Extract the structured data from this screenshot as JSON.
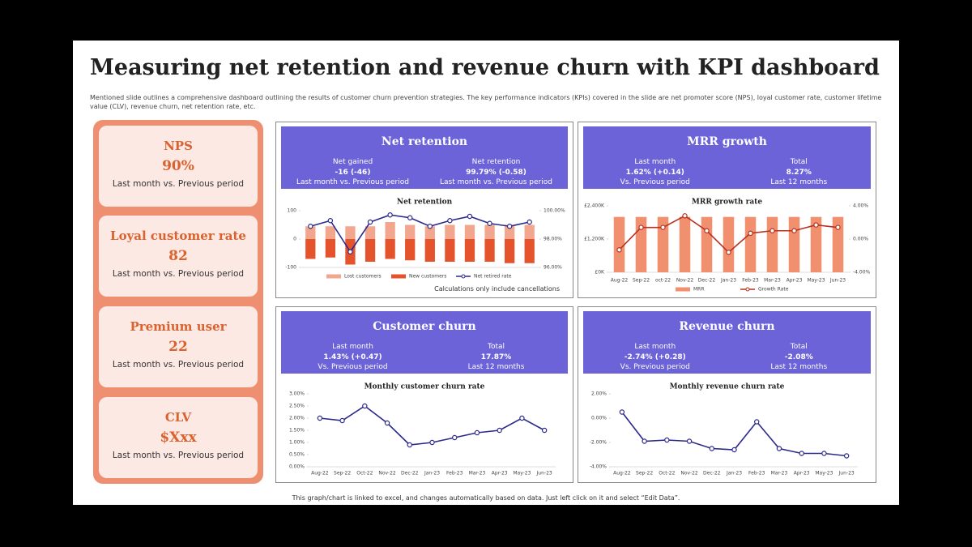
{
  "header": {
    "title": "Measuring net retention and revenue churn with KPI dashboard",
    "subtitle": "Mentioned slide outlines a comprehensive dashboard outlining the results of customer churn prevention strategies. The key performance indicators (KPIs) covered in the slide are net promoter score (NPS), loyal customer rate, customer lifetime value (CLV), revenue churn, net retention rate, etc."
  },
  "kpis": [
    {
      "title": "NPS",
      "value": "90%",
      "note": "Last month vs. Previous period"
    },
    {
      "title": "Loyal customer rate",
      "value": "82",
      "note": "Last month vs. Previous period"
    },
    {
      "title": "Premium user",
      "value": "22",
      "note": "Last month vs. Previous period"
    },
    {
      "title": "CLV",
      "value": "$Xxx",
      "note": "Last month vs. Previous period"
    }
  ],
  "panels": [
    {
      "title": "Net retention",
      "stats": [
        {
          "label": "Net gained",
          "value": "-16 (-46)",
          "period": "Last month vs. Previous period"
        },
        {
          "label": "Net retention",
          "value": "99.79% (-0.58)",
          "period": "Last month vs. Previous period"
        }
      ],
      "note": "Calculations only include cancellations"
    },
    {
      "title": "MRR growth",
      "stats": [
        {
          "label": "Last month",
          "value": "1.62% (+0.14)",
          "period": "Vs. Previous period"
        },
        {
          "label": "Total",
          "value": "8.27%",
          "period": "Last 12 months"
        }
      ]
    },
    {
      "title": "Customer churn",
      "stats": [
        {
          "label": "Last month",
          "value": "1.43% (+0.47)",
          "period": "Vs. Previous period"
        },
        {
          "label": "Total",
          "value": "17.87%",
          "period": "Last 12 months"
        }
      ]
    },
    {
      "title": "Revenue churn",
      "stats": [
        {
          "label": "Last month",
          "value": "-2.74% (+0.28)",
          "period": "Vs. Previous period"
        },
        {
          "label": "Total",
          "value": "-2.08%",
          "period": "Last 12 months"
        }
      ]
    }
  ],
  "chart_data": [
    {
      "type": "combo",
      "title": "Net retention",
      "categories": [
        null,
        null,
        null,
        null,
        null,
        null,
        null,
        null,
        null,
        null,
        null,
        null
      ],
      "series": [
        {
          "name": "Lost customers",
          "type": "bar",
          "color": "#f2a68d",
          "values": [
            45,
            45,
            45,
            45,
            60,
            50,
            45,
            50,
            50,
            50,
            50,
            50
          ]
        },
        {
          "name": "New customers",
          "type": "bar",
          "color": "#e4532b",
          "values": [
            -70,
            -65,
            -90,
            -80,
            -70,
            -75,
            -80,
            -80,
            -80,
            -80,
            -85,
            -85
          ]
        },
        {
          "name": "Net retired rate",
          "type": "line",
          "axis": "y2",
          "color": "#2b2a8a",
          "values": [
            98.9,
            99.3,
            97.1,
            99.2,
            99.7,
            99.5,
            98.9,
            99.3,
            99.6,
            99.1,
            98.9,
            99.2
          ]
        }
      ],
      "ylim": [
        -100,
        100
      ],
      "yticks": [
        -100,
        0,
        100
      ],
      "y2lim": [
        96,
        100
      ],
      "y2ticks": [
        {
          "value": 96,
          "label": "96.00%"
        },
        {
          "value": 98,
          "label": "98.00%"
        },
        {
          "value": 100,
          "label": "100.00%"
        }
      ]
    },
    {
      "type": "combo",
      "title": "MRR growth rate",
      "categories": [
        "Aug-22",
        "Sep-22",
        "oct-22",
        "Nov-22",
        "Dec-22",
        "Jan-23",
        "Feb-23",
        "Mar-23",
        "Apr-23",
        "May-23",
        "Jun-23"
      ],
      "series": [
        {
          "name": "MRR",
          "type": "bar",
          "color": "#f0906f",
          "values": [
            2000,
            2000,
            2000,
            2000,
            2000,
            2000,
            2000,
            2000,
            2000,
            2000,
            2000
          ]
        },
        {
          "name": "Growth Rate",
          "type": "line",
          "axis": "y2",
          "color": "#b8321f",
          "values": [
            -1.3,
            1.4,
            1.4,
            2.8,
            1.0,
            -1.6,
            0.7,
            1.0,
            1.0,
            1.7,
            1.4
          ]
        }
      ],
      "ylim": [
        0,
        2400
      ],
      "yticks": [
        {
          "value": 0,
          "label": "£0K"
        },
        {
          "value": 1200,
          "label": "£1,200K"
        },
        {
          "value": 2400,
          "label": "£2,400K"
        }
      ],
      "y2lim": [
        -4,
        4
      ],
      "y2ticks": [
        {
          "value": -4,
          "label": "-4.00%"
        },
        {
          "value": 0,
          "label": "0.00%"
        },
        {
          "value": 4,
          "label": "4.00%"
        }
      ]
    },
    {
      "type": "line",
      "title": "Monthly customer churn rate",
      "categories": [
        "Aug-22",
        "Sep-22",
        "Oct-22",
        "Nov-22",
        "Dec-22",
        "Jan-23",
        "Feb-23",
        "Mar-23",
        "Apr-23",
        "May-23",
        "Jun-23"
      ],
      "series": [
        {
          "color": "#2b2a8a",
          "values": [
            2.0,
            1.9,
            2.5,
            1.8,
            0.9,
            1.0,
            1.2,
            1.4,
            1.5,
            2.0,
            1.5
          ]
        }
      ],
      "ylim": [
        0,
        3
      ],
      "yticks": [
        {
          "value": 0,
          "label": "0.00%"
        },
        {
          "value": 0.5,
          "label": "0.50%"
        },
        {
          "value": 1,
          "label": "1.00%"
        },
        {
          "value": 1.5,
          "label": "1.50%"
        },
        {
          "value": 2,
          "label": "2.00%"
        },
        {
          "value": 2.5,
          "label": "2.50%"
        },
        {
          "value": 3,
          "label": "3.00%"
        }
      ]
    },
    {
      "type": "line",
      "title": "Monthly revenue churn rate",
      "categories": [
        "Aug-22",
        "Sep-22",
        "Oct-22",
        "Nov-22",
        "Dec-22",
        "Jan-23",
        "Feb-23",
        "Mar-23",
        "Apr-23",
        "May-23",
        "Jun-23"
      ],
      "series": [
        {
          "color": "#2b2a8a",
          "values": [
            0.5,
            -1.9,
            -1.8,
            -1.9,
            -2.5,
            -2.6,
            -0.3,
            -2.5,
            -2.9,
            -2.9,
            -3.1
          ]
        }
      ],
      "ylim": [
        -4,
        2
      ],
      "yticks": [
        {
          "value": -4,
          "label": "-4.00%"
        },
        {
          "value": -2,
          "label": "-2.00%"
        },
        {
          "value": 0,
          "label": "0.00%"
        },
        {
          "value": 2,
          "label": "2.00%"
        }
      ]
    }
  ],
  "footer": "This graph/chart is linked to excel, and changes automatically based on data. Just left click on it and select “Edit Data”."
}
